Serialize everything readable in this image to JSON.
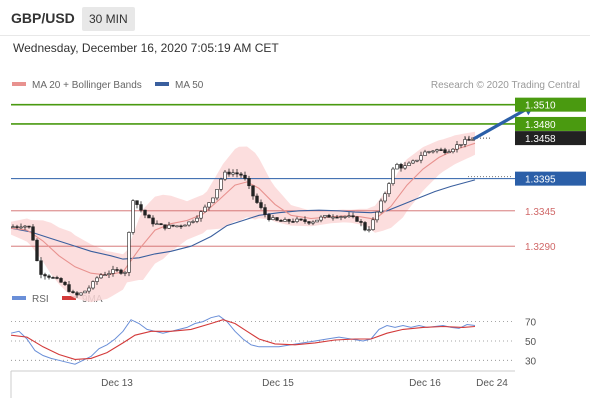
{
  "header": {
    "symbol": "GBP/USD",
    "interval": "30 MIN",
    "datetime": "Wednesday, December 16, 2020 7:05:19 AM CET"
  },
  "legend": {
    "ma20_label": "MA 20 + Bollinger Bands",
    "ma50_label": "MA 50",
    "credit": "Research © 2020 Trading Central"
  },
  "rsi_legend": {
    "rsi_label": "RSI",
    "ma_label": "9MA"
  },
  "colors": {
    "green": "#4a9a10",
    "blue": "#2b5fa8",
    "red": "#d06868",
    "ma20": "#e8928f",
    "ma50": "#3a5f9e",
    "band": "#fbd8d8",
    "rsi": "#6a8fd8",
    "rsi_ma": "#d33a3a"
  },
  "chart_data": {
    "type": "candlestick",
    "ylim": [
      1.3225,
      1.3525
    ],
    "x_ticks": [
      "Dec 13",
      "Dec 15",
      "Dec 16",
      "Dec 24"
    ],
    "levels": [
      {
        "value": 1.351,
        "label": "1.3510",
        "style": "resistance-green"
      },
      {
        "value": 1.348,
        "label": "1.3480",
        "style": "resistance-green"
      },
      {
        "value": 1.3458,
        "label": "1.3458",
        "style": "last-price"
      },
      {
        "value": 1.3395,
        "label": "1.3395",
        "style": "pivot-blue"
      },
      {
        "value": 1.3345,
        "label": "1.3345",
        "style": "support-red"
      },
      {
        "value": 1.329,
        "label": "1.3290",
        "style": "support-red"
      }
    ],
    "price_path": [
      [
        0,
        1.332
      ],
      [
        6,
        1.3323
      ],
      [
        10,
        1.3318
      ],
      [
        14,
        1.325
      ],
      [
        20,
        1.3242
      ],
      [
        26,
        1.3232
      ],
      [
        32,
        1.3212
      ],
      [
        36,
        1.3218
      ],
      [
        40,
        1.3228
      ],
      [
        44,
        1.3245
      ],
      [
        48,
        1.3248
      ],
      [
        52,
        1.3252
      ],
      [
        56,
        1.325
      ],
      [
        58,
        1.3252
      ],
      [
        60,
        1.3368
      ],
      [
        66,
        1.3342
      ],
      [
        70,
        1.3328
      ],
      [
        76,
        1.332
      ],
      [
        84,
        1.3322
      ],
      [
        90,
        1.3328
      ],
      [
        96,
        1.3345
      ],
      [
        102,
        1.3372
      ],
      [
        106,
        1.3402
      ],
      [
        110,
        1.3405
      ],
      [
        116,
        1.34
      ],
      [
        122,
        1.3362
      ],
      [
        128,
        1.3335
      ],
      [
        134,
        1.3328
      ],
      [
        142,
        1.333
      ],
      [
        150,
        1.3328
      ],
      [
        156,
        1.3335
      ],
      [
        162,
        1.3338
      ],
      [
        168,
        1.3336
      ],
      [
        174,
        1.333
      ],
      [
        178,
        1.3312
      ],
      [
        182,
        1.3335
      ],
      [
        188,
        1.338
      ],
      [
        192,
        1.3418
      ],
      [
        196,
        1.3412
      ],
      [
        202,
        1.3422
      ],
      [
        206,
        1.3435
      ],
      [
        212,
        1.344
      ],
      [
        218,
        1.3438
      ],
      [
        222,
        1.3445
      ],
      [
        226,
        1.3452
      ],
      [
        232,
        1.3458
      ]
    ],
    "ma20": [
      [
        0,
        1.3318
      ],
      [
        8,
        1.3315
      ],
      [
        16,
        1.3298
      ],
      [
        24,
        1.3275
      ],
      [
        32,
        1.3258
      ],
      [
        40,
        1.3248
      ],
      [
        48,
        1.3245
      ],
      [
        56,
        1.325
      ],
      [
        64,
        1.3285
      ],
      [
        72,
        1.3315
      ],
      [
        80,
        1.3325
      ],
      [
        88,
        1.333
      ],
      [
        96,
        1.334
      ],
      [
        104,
        1.3362
      ],
      [
        112,
        1.3385
      ],
      [
        118,
        1.339
      ],
      [
        124,
        1.338
      ],
      [
        132,
        1.3355
      ],
      [
        140,
        1.3338
      ],
      [
        150,
        1.3333
      ],
      [
        158,
        1.3335
      ],
      [
        166,
        1.3337
      ],
      [
        174,
        1.3336
      ],
      [
        182,
        1.3332
      ],
      [
        190,
        1.3352
      ],
      [
        198,
        1.3385
      ],
      [
        206,
        1.341
      ],
      [
        214,
        1.3428
      ],
      [
        222,
        1.344
      ],
      [
        232,
        1.345
      ]
    ],
    "ma50": [
      [
        0,
        1.3318
      ],
      [
        10,
        1.3312
      ],
      [
        20,
        1.3302
      ],
      [
        30,
        1.3292
      ],
      [
        40,
        1.3282
      ],
      [
        50,
        1.3275
      ],
      [
        56,
        1.327
      ],
      [
        64,
        1.3272
      ],
      [
        72,
        1.3278
      ],
      [
        80,
        1.3282
      ],
      [
        90,
        1.329
      ],
      [
        100,
        1.3305
      ],
      [
        108,
        1.3322
      ],
      [
        116,
        1.333
      ],
      [
        124,
        1.3338
      ],
      [
        134,
        1.3342
      ],
      [
        144,
        1.3345
      ],
      [
        154,
        1.3346
      ],
      [
        164,
        1.3345
      ],
      [
        172,
        1.3343
      ],
      [
        180,
        1.3342
      ],
      [
        188,
        1.3345
      ],
      [
        196,
        1.3355
      ],
      [
        204,
        1.3365
      ],
      [
        212,
        1.3375
      ],
      [
        220,
        1.3383
      ],
      [
        232,
        1.3393
      ]
    ],
    "band_width": [
      [
        0,
        0.001
      ],
      [
        10,
        0.002
      ],
      [
        20,
        0.004
      ],
      [
        30,
        0.005
      ],
      [
        40,
        0.0045
      ],
      [
        50,
        0.0035
      ],
      [
        58,
        0.0025
      ],
      [
        66,
        0.0055
      ],
      [
        76,
        0.005
      ],
      [
        88,
        0.003
      ],
      [
        98,
        0.003
      ],
      [
        106,
        0.005
      ],
      [
        114,
        0.0058
      ],
      [
        122,
        0.0052
      ],
      [
        130,
        0.003
      ],
      [
        140,
        0.0016
      ],
      [
        150,
        0.0012
      ],
      [
        160,
        0.001
      ],
      [
        170,
        0.001
      ],
      [
        178,
        0.0014
      ],
      [
        186,
        0.0028
      ],
      [
        196,
        0.0042
      ],
      [
        206,
        0.0034
      ],
      [
        216,
        0.0025
      ],
      [
        232,
        0.0018
      ]
    ],
    "forecast": {
      "from": [
        232,
        1.3458
      ],
      "to": [
        262,
        1.351
      ]
    },
    "rsi": {
      "ylim": [
        20,
        82
      ],
      "ticks": [
        30,
        50,
        70
      ],
      "values": [
        [
          0,
          58
        ],
        [
          4,
          60
        ],
        [
          8,
          52
        ],
        [
          12,
          40
        ],
        [
          16,
          35
        ],
        [
          20,
          32
        ],
        [
          24,
          30
        ],
        [
          28,
          28
        ],
        [
          32,
          26
        ],
        [
          36,
          30
        ],
        [
          40,
          34
        ],
        [
          44,
          42
        ],
        [
          48,
          46
        ],
        [
          52,
          52
        ],
        [
          56,
          60
        ],
        [
          60,
          72
        ],
        [
          64,
          68
        ],
        [
          68,
          62
        ],
        [
          72,
          60
        ],
        [
          76,
          58
        ],
        [
          80,
          60
        ],
        [
          84,
          62
        ],
        [
          88,
          64
        ],
        [
          92,
          68
        ],
        [
          96,
          70
        ],
        [
          100,
          74
        ],
        [
          104,
          76
        ],
        [
          108,
          70
        ],
        [
          112,
          60
        ],
        [
          116,
          52
        ],
        [
          120,
          46
        ],
        [
          124,
          44
        ],
        [
          128,
          44
        ],
        [
          134,
          44
        ],
        [
          140,
          46
        ],
        [
          146,
          48
        ],
        [
          152,
          50
        ],
        [
          158,
          52
        ],
        [
          164,
          54
        ],
        [
          170,
          52
        ],
        [
          176,
          50
        ],
        [
          180,
          52
        ],
        [
          184,
          62
        ],
        [
          188,
          66
        ],
        [
          192,
          64
        ],
        [
          196,
          66
        ],
        [
          200,
          64
        ],
        [
          204,
          66
        ],
        [
          208,
          64
        ],
        [
          212,
          65
        ],
        [
          216,
          66
        ],
        [
          220,
          64
        ],
        [
          224,
          63
        ],
        [
          228,
          67
        ],
        [
          232,
          66
        ]
      ],
      "ma9": [
        [
          0,
          56
        ],
        [
          8,
          54
        ],
        [
          16,
          44
        ],
        [
          24,
          36
        ],
        [
          32,
          31
        ],
        [
          40,
          32
        ],
        [
          48,
          38
        ],
        [
          56,
          48
        ],
        [
          62,
          56
        ],
        [
          70,
          60
        ],
        [
          80,
          60
        ],
        [
          90,
          62
        ],
        [
          100,
          68
        ],
        [
          106,
          72
        ],
        [
          112,
          68
        ],
        [
          118,
          60
        ],
        [
          124,
          52
        ],
        [
          132,
          47
        ],
        [
          142,
          46
        ],
        [
          152,
          48
        ],
        [
          162,
          51
        ],
        [
          172,
          52
        ],
        [
          180,
          52
        ],
        [
          188,
          58
        ],
        [
          196,
          62
        ],
        [
          206,
          64
        ],
        [
          216,
          65
        ],
        [
          226,
          64
        ],
        [
          232,
          65
        ]
      ]
    }
  }
}
